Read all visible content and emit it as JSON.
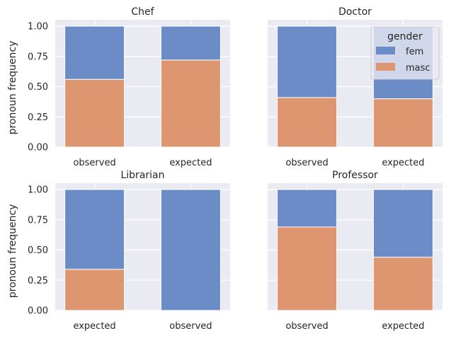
{
  "chart_data": {
    "type": "bar",
    "stacked": true,
    "ylabel": "pronoun frequency",
    "ylim": [
      0,
      1.0
    ],
    "yticks": [
      "0.00",
      "0.25",
      "0.50",
      "0.75",
      "1.00"
    ],
    "grid": true,
    "legend": {
      "title": "gender",
      "placement": "upper-right of Doctor panel",
      "entries": [
        {
          "label": "fem",
          "color": "#6b8cc7"
        },
        {
          "label": "masc",
          "color": "#de9670"
        }
      ]
    },
    "colors": {
      "fem": "#6b8cc7",
      "masc": "#de9670",
      "panel_bg": "#eaeaf2",
      "grid": "#ffffff"
    },
    "panels": [
      {
        "title": "Chef",
        "categories": [
          "observed",
          "expected"
        ],
        "series": [
          {
            "name": "masc",
            "values": [
              0.56,
              0.72
            ]
          },
          {
            "name": "fem",
            "values": [
              0.44,
              0.28
            ]
          }
        ]
      },
      {
        "title": "Doctor",
        "categories": [
          "observed",
          "expected"
        ],
        "series": [
          {
            "name": "masc",
            "values": [
              0.41,
              0.4
            ]
          },
          {
            "name": "fem",
            "values": [
              0.59,
              0.6
            ]
          }
        ]
      },
      {
        "title": "Librarian",
        "categories": [
          "expected",
          "observed"
        ],
        "series": [
          {
            "name": "masc",
            "values": [
              0.34,
              0.0
            ]
          },
          {
            "name": "fem",
            "values": [
              0.66,
              1.0
            ]
          }
        ]
      },
      {
        "title": "Professor",
        "categories": [
          "observed",
          "expected"
        ],
        "series": [
          {
            "name": "masc",
            "values": [
              0.69,
              0.44
            ]
          },
          {
            "name": "fem",
            "values": [
              0.31,
              0.56
            ]
          }
        ]
      }
    ]
  }
}
